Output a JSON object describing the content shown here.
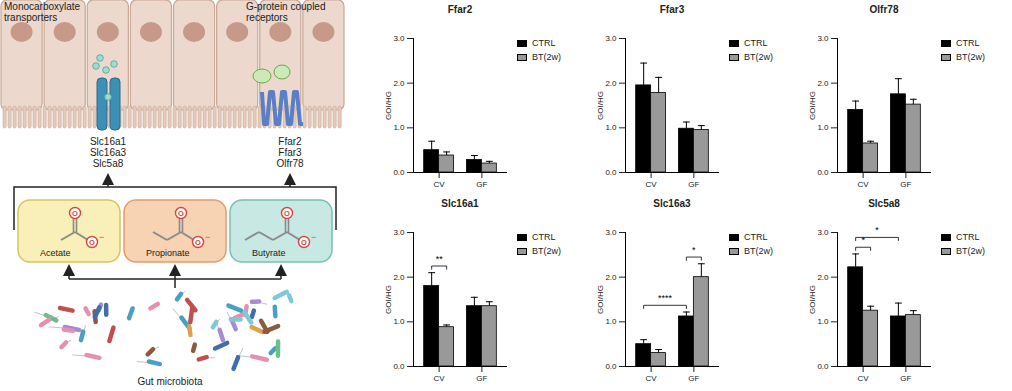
{
  "diagram": {
    "transporters": {
      "label_lines": [
        "Monocarboxylate",
        "transporters"
      ],
      "genes": [
        "Slc16a1",
        "Slc16a3",
        "Slc5a8"
      ]
    },
    "receptors": {
      "label_lines": [
        "G-protein coupled",
        "receptors"
      ],
      "genes": [
        "Ffar2",
        "Ffar3",
        "Olfr78"
      ]
    },
    "metabolites": [
      "Acetate",
      "Propionate",
      "Butyrate"
    ],
    "oxygen_label": "O",
    "charge_label": "−",
    "source": "Gut microbiota"
  },
  "chart_data": [
    {
      "type": "bar",
      "title": "Ffar2",
      "ylabel": "GOI/HG",
      "categories": [
        "CV",
        "GF"
      ],
      "series": [
        {
          "name": "CTRL",
          "color": "#000000",
          "values": [
            0.5,
            0.28
          ],
          "errors": [
            0.2,
            0.1
          ]
        },
        {
          "name": "BT(2w)",
          "color": "#999999",
          "values": [
            0.38,
            0.2
          ],
          "errors": [
            0.08,
            0.05
          ]
        }
      ],
      "ylim": [
        0,
        3
      ],
      "yticks": [
        0,
        1,
        2,
        3
      ],
      "legend": "right",
      "significance": []
    },
    {
      "type": "bar",
      "title": "Ffar3",
      "ylabel": "GOI/HG",
      "categories": [
        "CV",
        "GF"
      ],
      "series": [
        {
          "name": "CTRL",
          "color": "#000000",
          "values": [
            1.95,
            0.98
          ],
          "errors": [
            0.5,
            0.15
          ]
        },
        {
          "name": "BT(2w)",
          "color": "#999999",
          "values": [
            1.78,
            0.95
          ],
          "errors": [
            0.35,
            0.1
          ]
        }
      ],
      "ylim": [
        0,
        3
      ],
      "yticks": [
        0,
        1,
        2,
        3
      ],
      "legend": "right",
      "significance": []
    },
    {
      "type": "bar",
      "title": "Olfr78",
      "ylabel": "GOI/HG",
      "categories": [
        "CV",
        "GF"
      ],
      "series": [
        {
          "name": "CTRL",
          "color": "#000000",
          "values": [
            1.4,
            1.75
          ],
          "errors": [
            0.2,
            0.35
          ]
        },
        {
          "name": "BT(2w)",
          "color": "#999999",
          "values": [
            0.65,
            1.52
          ],
          "errors": [
            0.05,
            0.12
          ]
        }
      ],
      "ylim": [
        0,
        3
      ],
      "yticks": [
        0,
        1,
        2,
        3
      ],
      "legend": "right",
      "significance": []
    },
    {
      "type": "bar",
      "title": "Slc16a1",
      "ylabel": "GOI/HG",
      "categories": [
        "CV",
        "GF"
      ],
      "series": [
        {
          "name": "CTRL",
          "color": "#000000",
          "values": [
            1.8,
            1.35
          ],
          "errors": [
            0.3,
            0.2
          ]
        },
        {
          "name": "BT(2w)",
          "color": "#999999",
          "values": [
            0.88,
            1.35
          ],
          "errors": [
            0.05,
            0.1
          ]
        }
      ],
      "ylim": [
        0,
        3
      ],
      "yticks": [
        0,
        1,
        2,
        3
      ],
      "legend": "right",
      "significance": [
        {
          "label": "**",
          "from": {
            "category": "CV",
            "series": "CTRL"
          },
          "to": {
            "category": "CV",
            "series": "BT(2w)"
          }
        }
      ]
    },
    {
      "type": "bar",
      "title": "Slc16a3",
      "ylabel": "GOI/HG",
      "categories": [
        "CV",
        "GF"
      ],
      "series": [
        {
          "name": "CTRL",
          "color": "#000000",
          "values": [
            0.5,
            1.12
          ],
          "errors": [
            0.1,
            0.1
          ]
        },
        {
          "name": "BT(2w)",
          "color": "#999999",
          "values": [
            0.3,
            2.0
          ],
          "errors": [
            0.08,
            0.3
          ]
        }
      ],
      "ylim": [
        0,
        3
      ],
      "yticks": [
        0,
        1,
        2,
        3
      ],
      "legend": "right",
      "significance": [
        {
          "label": "****",
          "from": {
            "category": "CV",
            "series": "CTRL"
          },
          "to": {
            "category": "GF",
            "series": "CTRL"
          }
        },
        {
          "label": "*",
          "from": {
            "category": "GF",
            "series": "CTRL"
          },
          "to": {
            "category": "GF",
            "series": "BT(2w)"
          }
        }
      ]
    },
    {
      "type": "bar",
      "title": "Slc5a8",
      "ylabel": "GOI/HG",
      "categories": [
        "CV",
        "GF"
      ],
      "series": [
        {
          "name": "CTRL",
          "color": "#000000",
          "values": [
            2.22,
            1.12
          ],
          "errors": [
            0.3,
            0.3
          ]
        },
        {
          "name": "BT(2w)",
          "color": "#999999",
          "values": [
            1.25,
            1.15
          ],
          "errors": [
            0.1,
            0.1
          ]
        }
      ],
      "ylim": [
        0,
        3
      ],
      "yticks": [
        0,
        1,
        2,
        3
      ],
      "legend": "right",
      "significance": [
        {
          "label": "*",
          "from": {
            "category": "CV",
            "series": "CTRL"
          },
          "to": {
            "category": "CV",
            "series": "BT(2w)"
          }
        },
        {
          "label": "*",
          "from": {
            "category": "CV",
            "series": "CTRL"
          },
          "to": {
            "category": "GF",
            "series": "CTRL"
          }
        }
      ]
    }
  ]
}
